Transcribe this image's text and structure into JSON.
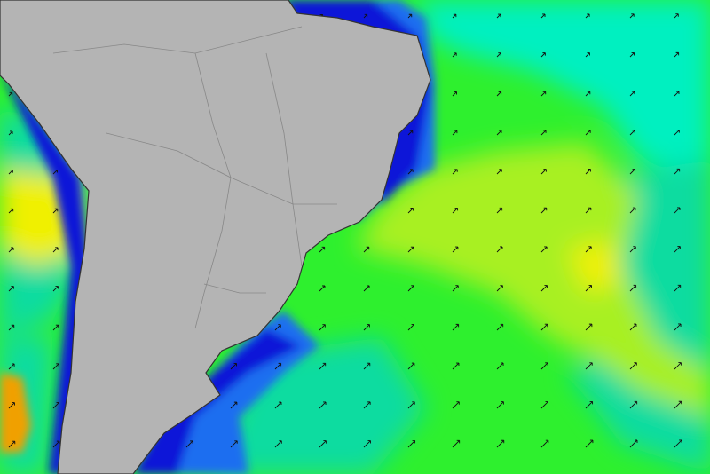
{
  "map": {
    "colors": {
      "land": "#b4b4b4",
      "coastline": "#333333",
      "ocean_base": "#2ef02e",
      "deep_blue": "#0a14d8",
      "blue": "#1e6ef0",
      "cyan": "#00f0c0",
      "aqua": "#10dca0",
      "lime": "#a8f020",
      "yellow": "#f0f000",
      "orange": "#f0a000",
      "arrow": "#111111"
    },
    "arrow_icon": "direction-arrow-icon",
    "arrow_direction": "northeast"
  }
}
